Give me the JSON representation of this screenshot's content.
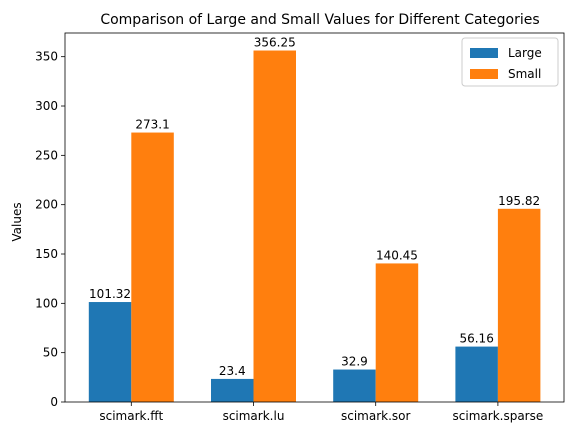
{
  "chart_data": {
    "type": "bar",
    "title": "Comparison of Large and Small Values for Different Categories",
    "xlabel": "",
    "ylabel": "Values",
    "categories": [
      "scimark.fft",
      "scimark.lu",
      "scimark.sor",
      "scimark.sparse"
    ],
    "series": [
      {
        "name": "Large",
        "color": "#1f77b4",
        "values": [
          101.32,
          23.4,
          32.9,
          56.16
        ]
      },
      {
        "name": "Small",
        "color": "#ff7f0e",
        "values": [
          273.1,
          356.25,
          140.45,
          195.82
        ]
      }
    ],
    "ylim": [
      0,
      374
    ],
    "yticks": [
      0,
      50,
      100,
      150,
      200,
      250,
      300,
      350
    ],
    "grid": false,
    "legend_position": "top-right",
    "data_labels": true
  }
}
